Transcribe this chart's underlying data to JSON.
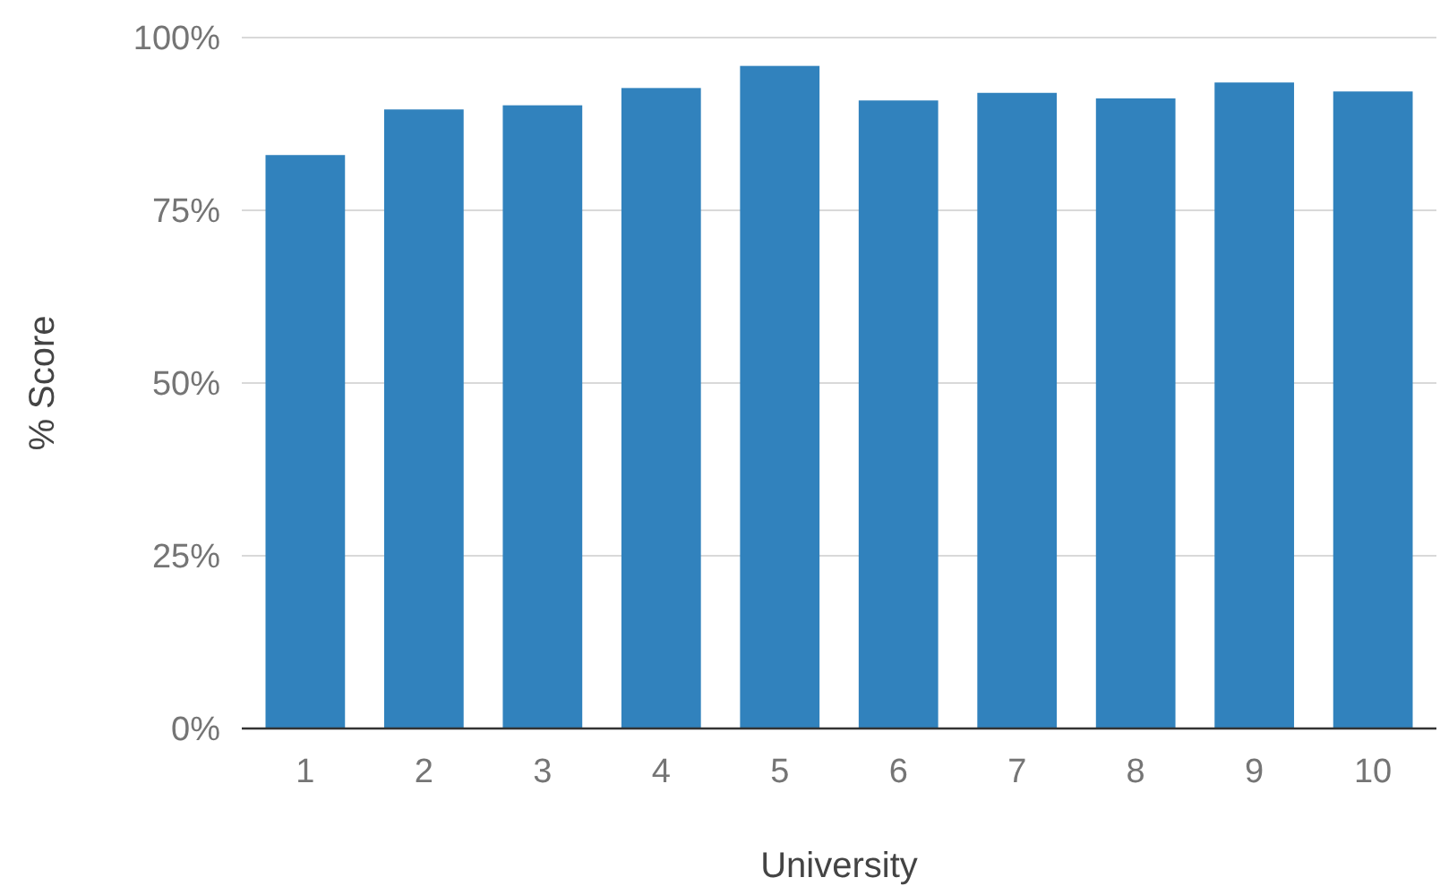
{
  "chart_data": {
    "type": "bar",
    "xlabel": "University",
    "ylabel": "% Score",
    "categories": [
      "1",
      "2",
      "3",
      "4",
      "5",
      "6",
      "7",
      "8",
      "9",
      "10"
    ],
    "values": [
      83,
      89.6,
      90.2,
      92.7,
      95.9,
      90.9,
      92,
      91.2,
      93.5,
      92.2
    ],
    "color": "#3182bd",
    "ylim": [
      0,
      100
    ],
    "yticks": [
      {
        "value": 0,
        "label": "0%"
      },
      {
        "value": 25,
        "label": "25%"
      },
      {
        "value": 50,
        "label": "50%"
      },
      {
        "value": 75,
        "label": "75%"
      },
      {
        "value": 100,
        "label": "100%"
      }
    ],
    "grid": "y"
  }
}
